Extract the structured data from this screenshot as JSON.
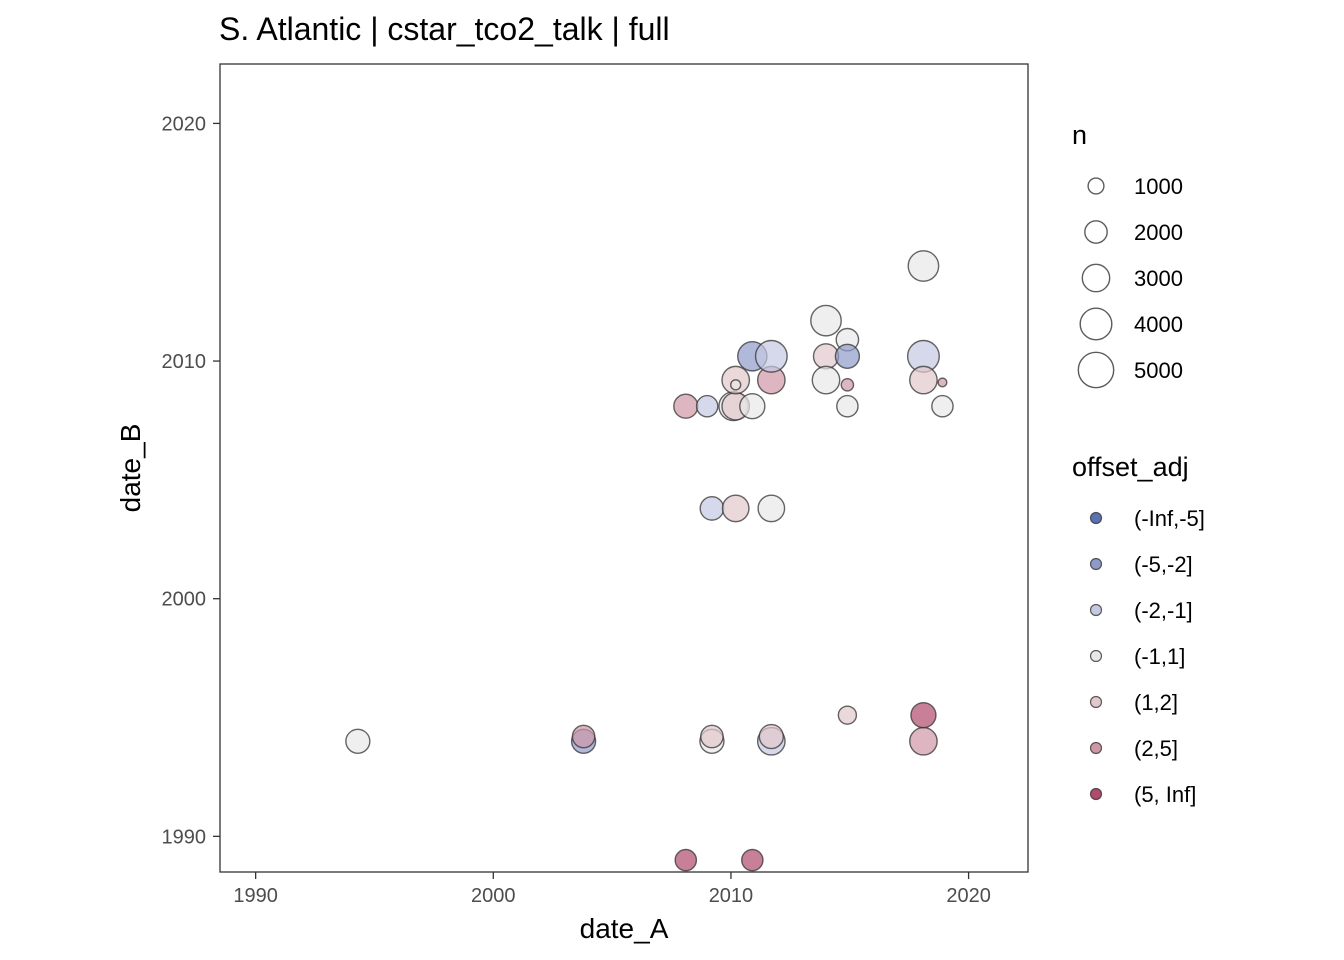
{
  "chart_data": {
    "type": "scatter",
    "title": "S. Atlantic | cstar_tco2_talk | full",
    "xlabel": "date_A",
    "ylabel": "date_B",
    "xlim": [
      1988.5,
      2022.5
    ],
    "ylim": [
      1988.5,
      2022.5
    ],
    "x_ticks": [
      1990,
      2000,
      2010,
      2020
    ],
    "y_ticks": [
      1990,
      2000,
      2010,
      2020
    ],
    "x_tick_labels": [
      "1990",
      "2000",
      "2010",
      "2020"
    ],
    "y_tick_labels": [
      "1990",
      "2000",
      "2010",
      "2020"
    ],
    "grid": false,
    "legend_placement": "right",
    "size_legend": {
      "title": "n",
      "values": [
        1000,
        2000,
        3000,
        4000,
        5000
      ],
      "labels": [
        "1000",
        "2000",
        "3000",
        "4000",
        "5000"
      ]
    },
    "color_legend": {
      "title": "offset_adj",
      "categories": [
        "(-Inf,-5]",
        "(-5,-2]",
        "(-2,-1]",
        "(-1,1]",
        "(1,2]",
        "(2,5]",
        "(5, Inf]"
      ],
      "colors": [
        "#5a72b5",
        "#8e9bc9",
        "#c4c9e2",
        "#e8e8e8",
        "#e2c8cc",
        "#cf97a6",
        "#b04a6e"
      ]
    },
    "points": [
      {
        "x": 1994.3,
        "y": 1994.0,
        "n": 2300,
        "cat": "(-1,1]"
      },
      {
        "x": 2003.8,
        "y": 1994.0,
        "n": 2300,
        "cat": "(-5,-2]"
      },
      {
        "x": 2003.8,
        "y": 1994.2,
        "n": 2000,
        "cat": "(2,5]"
      },
      {
        "x": 2009.2,
        "y": 1994.0,
        "n": 2300,
        "cat": "(-1,1]"
      },
      {
        "x": 2009.2,
        "y": 1994.2,
        "n": 2000,
        "cat": "(1,2]"
      },
      {
        "x": 2011.7,
        "y": 1994.0,
        "n": 3000,
        "cat": "(-2,-1]"
      },
      {
        "x": 2011.7,
        "y": 1994.2,
        "n": 2300,
        "cat": "(1,2]"
      },
      {
        "x": 2014.9,
        "y": 1995.1,
        "n": 1300,
        "cat": "(1,2]"
      },
      {
        "x": 2018.1,
        "y": 1994.0,
        "n": 3000,
        "cat": "(2,5]"
      },
      {
        "x": 2018.1,
        "y": 1995.1,
        "n": 2500,
        "cat": "(5, Inf]"
      },
      {
        "x": 2008.1,
        "y": 1989.0,
        "n": 1800,
        "cat": "(5, Inf]"
      },
      {
        "x": 2010.9,
        "y": 1989.0,
        "n": 1800,
        "cat": "(5, Inf]"
      },
      {
        "x": 2009.2,
        "y": 2003.8,
        "n": 2200,
        "cat": "(-2,-1]"
      },
      {
        "x": 2010.2,
        "y": 2003.8,
        "n": 2800,
        "cat": "(1,2]"
      },
      {
        "x": 2011.7,
        "y": 2003.8,
        "n": 2800,
        "cat": "(-1,1]"
      },
      {
        "x": 2008.1,
        "y": 2008.1,
        "n": 2300,
        "cat": "(2,5]"
      },
      {
        "x": 2009.0,
        "y": 2008.1,
        "n": 1800,
        "cat": "(-2,-1]"
      },
      {
        "x": 2010.1,
        "y": 2008.1,
        "n": 3300,
        "cat": "(-1,1]"
      },
      {
        "x": 2010.2,
        "y": 2008.1,
        "n": 3000,
        "cat": "(1,2]"
      },
      {
        "x": 2010.9,
        "y": 2008.1,
        "n": 2500,
        "cat": "(-1,1]"
      },
      {
        "x": 2010.2,
        "y": 2009.2,
        "n": 3000,
        "cat": "(1,2]"
      },
      {
        "x": 2010.2,
        "y": 2009.0,
        "n": 400,
        "cat": "(-1,1]"
      },
      {
        "x": 2011.7,
        "y": 2009.2,
        "n": 3000,
        "cat": "(2,5]"
      },
      {
        "x": 2010.9,
        "y": 2010.2,
        "n": 3400,
        "cat": "(-5,-2]"
      },
      {
        "x": 2011.7,
        "y": 2010.2,
        "n": 4000,
        "cat": "(-2,-1]"
      },
      {
        "x": 2014.0,
        "y": 2011.7,
        "n": 3700,
        "cat": "(-1,1]"
      },
      {
        "x": 2014.0,
        "y": 2010.2,
        "n": 2500,
        "cat": "(1,2]"
      },
      {
        "x": 2014.0,
        "y": 2009.2,
        "n": 3000,
        "cat": "(-1,1]"
      },
      {
        "x": 2014.9,
        "y": 2010.9,
        "n": 2000,
        "cat": "(-1,1]"
      },
      {
        "x": 2014.9,
        "y": 2010.2,
        "n": 2300,
        "cat": "(-5,-2]"
      },
      {
        "x": 2014.9,
        "y": 2009.0,
        "n": 600,
        "cat": "(2,5]"
      },
      {
        "x": 2014.9,
        "y": 2008.1,
        "n": 1800,
        "cat": "(-1,1]"
      },
      {
        "x": 2018.1,
        "y": 2014.0,
        "n": 3700,
        "cat": "(-1,1]"
      },
      {
        "x": 2018.1,
        "y": 2010.2,
        "n": 4000,
        "cat": "(-2,-1]"
      },
      {
        "x": 2018.1,
        "y": 2009.2,
        "n": 3000,
        "cat": "(1,2]"
      },
      {
        "x": 2018.9,
        "y": 2009.1,
        "n": 300,
        "cat": "(2,5]"
      },
      {
        "x": 2018.9,
        "y": 2008.1,
        "n": 1800,
        "cat": "(-1,1]"
      }
    ]
  }
}
